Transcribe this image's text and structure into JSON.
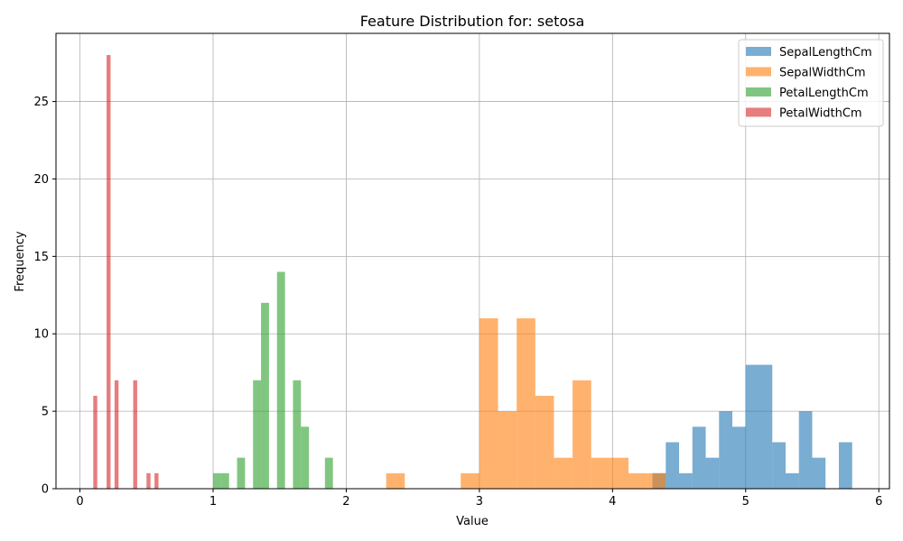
{
  "chart_data": {
    "type": "bar",
    "title": "Feature Distribution for: setosa",
    "xlabel": "Value",
    "ylabel": "Frequency",
    "xlim": [
      -0.18,
      6.08
    ],
    "ylim": [
      0,
      29.4
    ],
    "xticks": [
      0,
      1,
      2,
      3,
      4,
      5,
      6
    ],
    "yticks": [
      0,
      5,
      10,
      15,
      20,
      25
    ],
    "grid": true,
    "legend_position": "top-right",
    "series": [
      {
        "name": "SepalLengthCm",
        "color": "#1f77b4",
        "bin_width": 0.1,
        "bins": [
          [
            4.3,
            1
          ],
          [
            4.4,
            3
          ],
          [
            4.5,
            1
          ],
          [
            4.6,
            4
          ],
          [
            4.7,
            2
          ],
          [
            4.8,
            5
          ],
          [
            4.9,
            4
          ],
          [
            5.0,
            8
          ],
          [
            5.1,
            8
          ],
          [
            5.2,
            3
          ],
          [
            5.3,
            1
          ],
          [
            5.4,
            5
          ],
          [
            5.5,
            2
          ],
          [
            5.7,
            3
          ]
        ]
      },
      {
        "name": "SepalWidthCm",
        "color": "#ff7f0e",
        "bin_width": 0.14,
        "bins": [
          [
            2.3,
            1
          ],
          [
            2.86,
            1
          ],
          [
            3.0,
            11
          ],
          [
            3.14,
            5
          ],
          [
            3.28,
            11
          ],
          [
            3.42,
            6
          ],
          [
            3.56,
            2
          ],
          [
            3.7,
            7
          ],
          [
            3.84,
            2
          ],
          [
            3.98,
            2
          ],
          [
            4.12,
            1
          ],
          [
            4.26,
            1
          ]
        ]
      },
      {
        "name": "PetalLengthCm",
        "color": "#2ca02c",
        "bin_width": 0.06,
        "bins": [
          [
            1.0,
            1
          ],
          [
            1.06,
            1
          ],
          [
            1.18,
            2
          ],
          [
            1.3,
            7
          ],
          [
            1.36,
            12
          ],
          [
            1.48,
            14
          ],
          [
            1.6,
            7
          ],
          [
            1.66,
            4
          ],
          [
            1.84,
            2
          ]
        ]
      },
      {
        "name": "PetalWidthCm",
        "color": "#d62728",
        "bin_width": 0.03,
        "bins": [
          [
            0.1,
            6
          ],
          [
            0.2,
            28
          ],
          [
            0.26,
            7
          ],
          [
            0.4,
            7
          ],
          [
            0.5,
            1
          ],
          [
            0.56,
            1
          ]
        ]
      }
    ]
  }
}
